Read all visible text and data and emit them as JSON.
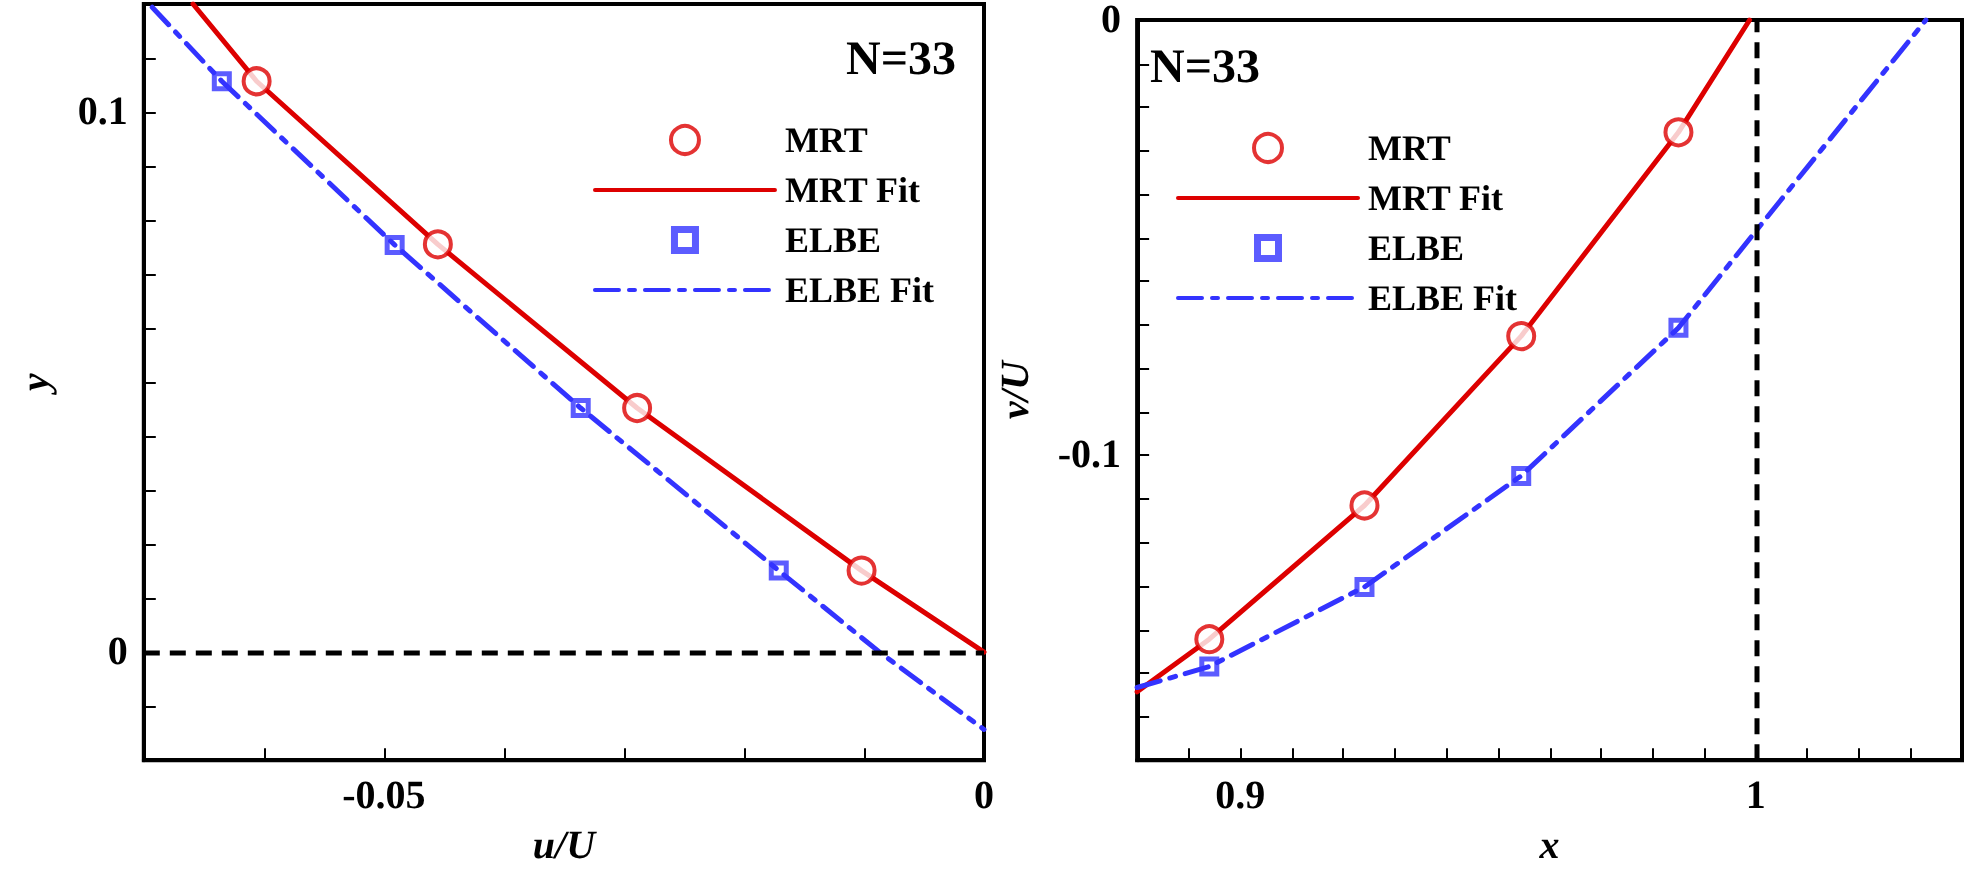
{
  "chart_data": [
    {
      "type": "line",
      "xlabel": "u/U",
      "ylabel": "y",
      "annotations": [
        "N=33"
      ],
      "legend": "top right",
      "grid": false,
      "xlim": [
        -0.07,
        0
      ],
      "xticks": [
        {
          "value": -0.07,
          "label": null
        },
        {
          "value": -0.06,
          "label": null
        },
        -0.05,
        {
          "value": -0.04,
          "label": null
        },
        {
          "value": -0.03,
          "label": null
        },
        {
          "value": -0.02,
          "label": null
        },
        {
          "value": -0.01,
          "label": null
        },
        0
      ],
      "ylim": [
        -0.02,
        0.12
      ],
      "yticks": [
        {
          "value": -0.02,
          "label": null
        },
        {
          "value": -0.01,
          "label": null
        },
        0,
        {
          "value": 0.01,
          "label": null
        },
        {
          "value": 0.02,
          "label": null
        },
        {
          "value": 0.03,
          "label": null
        },
        {
          "value": 0.04,
          "label": null
        },
        {
          "value": 0.05,
          "label": null
        },
        {
          "value": 0.06,
          "label": null
        },
        {
          "value": 0.07,
          "label": null
        },
        {
          "value": 0.08,
          "label": null
        },
        {
          "value": 0.09,
          "label": null
        },
        0.1,
        {
          "value": 0.11,
          "label": null
        },
        {
          "value": 0.12,
          "label": null
        }
      ],
      "ref_lines": [
        {
          "axis": "y",
          "value": 0,
          "color": "#000000",
          "line_style": "dashed"
        }
      ],
      "series": [
        {
          "name": "MRT",
          "type": "scatter",
          "marker": "circle",
          "color": "#dd0000",
          "x": [
            -0.0606,
            -0.0455,
            -0.0289,
            -0.0102
          ],
          "values": [
            0.1057,
            0.0755,
            0.0452,
            0.0151
          ]
        },
        {
          "name": "MRT Fit",
          "type": "line",
          "marker": "none",
          "line_style": "solid",
          "color": "#dd0000",
          "x": [
            -0.0659,
            -0.0606,
            -0.0455,
            -0.0289,
            -0.0102,
            0
          ],
          "values": [
            0.12,
            0.1057,
            0.0755,
            0.0452,
            0.0151,
            0
          ]
        },
        {
          "name": "ELBE",
          "type": "scatter",
          "marker": "square",
          "color": "#3333ff",
          "x": [
            -0.0635,
            -0.0491,
            -0.0336,
            -0.0171
          ],
          "values": [
            0.1057,
            0.0754,
            0.0452,
            0.0151
          ]
        },
        {
          "name": "ELBE Fit",
          "type": "line",
          "marker": "none",
          "line_style": "dashdot",
          "color": "#3333ff",
          "x": [
            -0.0693,
            -0.0635,
            -0.0491,
            -0.0336,
            -0.0171,
            -0.0087,
            0
          ],
          "values": [
            0.1194,
            0.1057,
            0.0754,
            0.0452,
            0.0151,
            0,
            -0.0143
          ]
        }
      ]
    },
    {
      "type": "line",
      "xlabel": "x",
      "ylabel": "v/U",
      "annotations": [
        "N=33"
      ],
      "legend": "top left",
      "grid": false,
      "xlim": [
        0.88,
        1.04
      ],
      "xticks": [
        {
          "value": 0.88,
          "label": null
        },
        {
          "value": 0.89,
          "label": null
        },
        0.9,
        {
          "value": 0.91,
          "label": null
        },
        {
          "value": 0.92,
          "label": null
        },
        {
          "value": 0.93,
          "label": null
        },
        {
          "value": 0.94,
          "label": null
        },
        {
          "value": 0.95,
          "label": null
        },
        {
          "value": 0.96,
          "label": null
        },
        {
          "value": 0.97,
          "label": null
        },
        {
          "value": 0.98,
          "label": null
        },
        {
          "value": 0.99,
          "label": null
        },
        1,
        {
          "value": 1.01,
          "label": null
        },
        {
          "value": 1.02,
          "label": null
        },
        {
          "value": 1.03,
          "label": null
        },
        {
          "value": 1.04,
          "label": null
        }
      ],
      "ylim": [
        -0.17,
        0
      ],
      "yticks": [
        {
          "value": -0.17,
          "label": null
        },
        {
          "value": -0.16,
          "label": null
        },
        {
          "value": -0.15,
          "label": null
        },
        {
          "value": -0.14,
          "label": null
        },
        {
          "value": -0.13,
          "label": null
        },
        {
          "value": -0.12,
          "label": null
        },
        {
          "value": -0.11,
          "label": null
        },
        -0.1,
        {
          "value": -0.09,
          "label": null
        },
        {
          "value": -0.08,
          "label": null
        },
        {
          "value": -0.07,
          "label": null
        },
        {
          "value": -0.06,
          "label": null
        },
        {
          "value": -0.05,
          "label": null
        },
        {
          "value": -0.04,
          "label": null
        },
        {
          "value": -0.03,
          "label": null
        },
        {
          "value": -0.02,
          "label": null
        },
        {
          "value": -0.01,
          "label": null
        },
        0
      ],
      "ref_lines": [
        {
          "axis": "x",
          "value": 1,
          "color": "#000000",
          "line_style": "dashed"
        }
      ],
      "series": [
        {
          "name": "MRT",
          "type": "scatter",
          "marker": "circle",
          "color": "#dd0000",
          "x": [
            0.894,
            0.9241,
            0.9545,
            0.985
          ],
          "values": [
            -0.1422,
            -0.1115,
            -0.0726,
            -0.0258
          ]
        },
        {
          "name": "MRT Fit",
          "type": "line",
          "marker": "none",
          "line_style": "solid",
          "color": "#dd0000",
          "x": [
            0.88,
            0.894,
            0.9241,
            0.9545,
            0.985,
            0.9988
          ],
          "values": [
            -0.1543,
            -0.1422,
            -0.1115,
            -0.0726,
            -0.0258,
            0
          ]
        },
        {
          "name": "ELBE",
          "type": "scatter",
          "marker": "square",
          "color": "#3333ff",
          "x": [
            0.894,
            0.9241,
            0.9545,
            0.985
          ],
          "values": [
            -0.1485,
            -0.1302,
            -0.1047,
            -0.0707
          ]
        },
        {
          "name": "ELBE Fit",
          "type": "line",
          "marker": "none",
          "line_style": "dashdot",
          "color": "#3333ff",
          "x": [
            0.88,
            0.894,
            0.9241,
            0.9545,
            0.985,
            1.0,
            1.033
          ],
          "values": [
            -0.1533,
            -0.1485,
            -0.1302,
            -0.1047,
            -0.0707,
            -0.0485,
            0
          ]
        }
      ]
    }
  ]
}
